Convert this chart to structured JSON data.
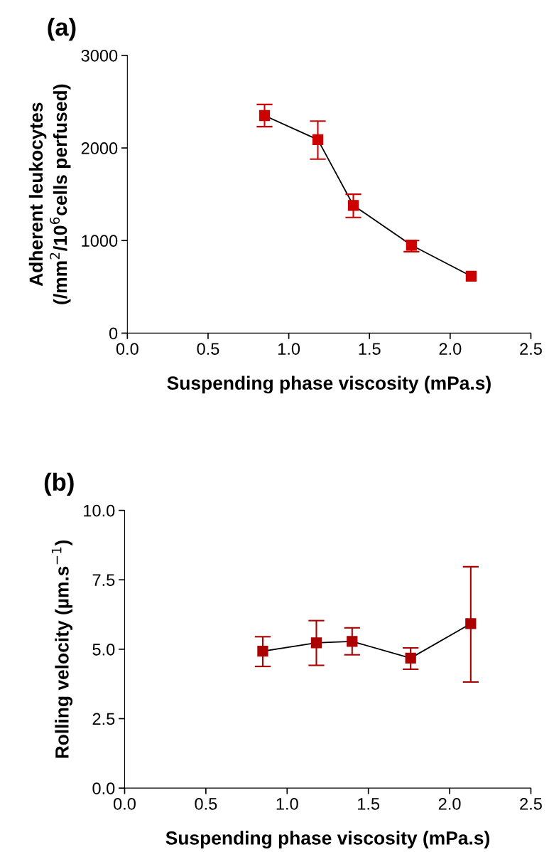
{
  "chart_data": [
    {
      "type": "line",
      "title": "(a)",
      "xlabel": "Suspending phase viscosity (mPa.s)",
      "ylabel": "Adherent leukocytes\n(/mm$^{2}$/10$^{6}$cells perfused)",
      "x": [
        0.85,
        1.18,
        1.4,
        1.76,
        2.13
      ],
      "series": [
        {
          "color": "#cc0000",
          "values": [
            2350,
            2090,
            1380,
            950,
            615
          ],
          "errors": [
            [
              2230,
              2470
            ],
            [
              1880,
              2290
            ],
            [
              1250,
              1500
            ],
            [
              880,
              1000
            ],
            null
          ]
        }
      ],
      "xlim": [
        0,
        2.5
      ],
      "xticks": [
        {
          "value": 0,
          "label": "0.0"
        },
        0.5,
        {
          "value": 1,
          "label": "1.0"
        },
        1.5,
        {
          "value": 2,
          "label": "2.0"
        },
        2.5
      ],
      "ylim": [
        0,
        3000
      ],
      "yticks": [
        0,
        1000,
        2000,
        3000
      ],
      "marker": "square",
      "line_style": "solid",
      "grid": false,
      "legend": false
    },
    {
      "type": "line",
      "title": "(b)",
      "xlabel": "Suspending phase viscosity (mPa.s)",
      "ylabel": "Rolling velocity (µm.s$^{−1}$)",
      "x": [
        0.85,
        1.18,
        1.4,
        1.76,
        2.13
      ],
      "series": [
        {
          "color": "#aa0000",
          "values": [
            4.93,
            5.23,
            5.28,
            4.68,
            5.92
          ],
          "errors": [
            [
              4.38,
              5.45
            ],
            [
              4.42,
              6.03
            ],
            [
              4.8,
              5.77
            ],
            [
              4.28,
              5.05
            ],
            [
              3.82,
              7.97
            ]
          ]
        }
      ],
      "xlim": [
        0,
        2.5
      ],
      "xticks": [
        {
          "value": 0,
          "label": "0.0"
        },
        0.5,
        {
          "value": 1,
          "label": "1.0"
        },
        1.5,
        {
          "value": 2,
          "label": "2.0"
        },
        2.5
      ],
      "ylim": [
        0,
        10
      ],
      "yticks": [
        {
          "value": 0,
          "label": "0.0"
        },
        2.5,
        {
          "value": 5,
          "label": "5.0"
        },
        7.5,
        {
          "value": 10,
          "label": "10.0"
        }
      ],
      "marker": "square",
      "line_style": "solid",
      "grid": false,
      "legend": false
    }
  ]
}
